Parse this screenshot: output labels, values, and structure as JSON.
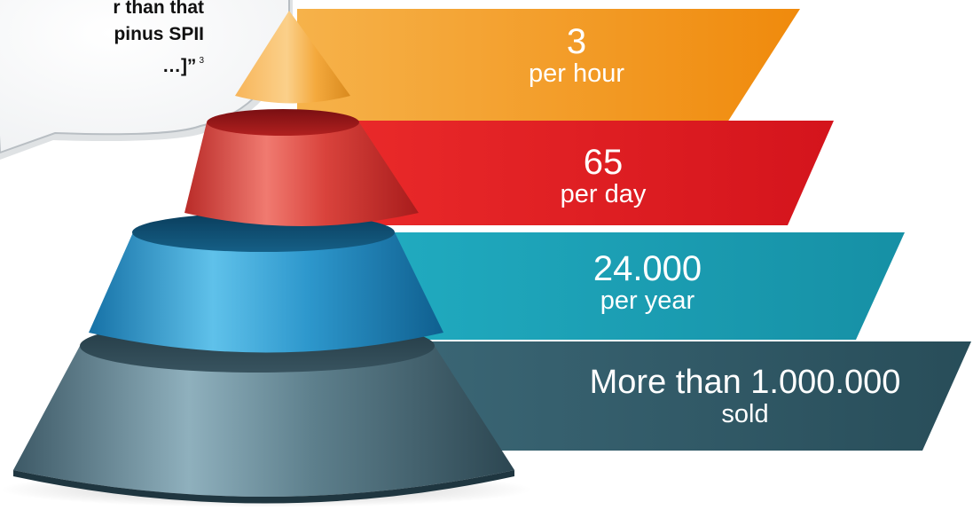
{
  "quote": {
    "line1": "r than that",
    "line2": "pinus SPII",
    "line3": "…]”",
    "footnote": "3"
  },
  "tiers": [
    {
      "value": "3",
      "label": "per hour",
      "color": "#f39a1c"
    },
    {
      "value": "65",
      "label": "per day",
      "color": "#e31d24"
    },
    {
      "value": "24.000",
      "label": "per year",
      "color": "#1aa0b4"
    },
    {
      "value": "More than 1.000.000",
      "label": "sold",
      "color": "#2f5966"
    }
  ]
}
